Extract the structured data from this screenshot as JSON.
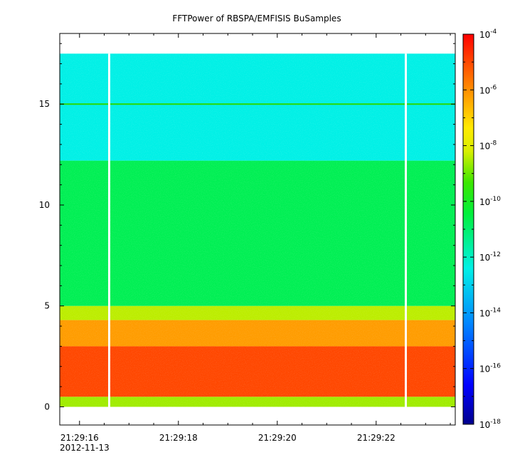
{
  "chart_data": {
    "type": "heatmap",
    "title": "FFTPower of RBSPA/EMFISIS  BuSamples",
    "xlabel": "",
    "ylabel": "",
    "x_ticks": [
      "21:29:16",
      "21:29:18",
      "21:29:20",
      "21:29:22"
    ],
    "x_tick_sub_label": "2012-11-13",
    "x_range_seconds": [
      15.6,
      23.6
    ],
    "y_ticks": [
      0,
      5,
      10,
      15
    ],
    "ylim": [
      -0.9,
      18.5
    ],
    "data_y_range": [
      0,
      17.5
    ],
    "colorbar": {
      "scale": "log",
      "range": [
        1e-18,
        0.0001
      ],
      "tick_labels": [
        {
          "base": "10",
          "exp": "-4"
        },
        {
          "base": "10",
          "exp": "-6"
        },
        {
          "base": "10",
          "exp": "-8"
        },
        {
          "base": "10",
          "exp": "-10"
        },
        {
          "base": "10",
          "exp": "-12"
        },
        {
          "base": "10",
          "exp": "-14"
        },
        {
          "base": "10",
          "exp": "-16"
        },
        {
          "base": "10",
          "exp": "-18"
        }
      ]
    },
    "gaps_seconds": [
      16.6,
      22.6
    ],
    "spectral_bands": [
      {
        "y_from": 0.0,
        "y_to": 0.5,
        "log_power": -8.6
      },
      {
        "y_from": 0.5,
        "y_to": 3.0,
        "log_power": -5.0
      },
      {
        "y_from": 3.0,
        "y_to": 4.3,
        "log_power": -6.2
      },
      {
        "y_from": 4.3,
        "y_to": 5.0,
        "log_power": -8.4
      },
      {
        "y_from": 5.0,
        "y_to": 12.2,
        "log_power": -10.7
      },
      {
        "y_from": 12.2,
        "y_to": 17.5,
        "log_power": -12.4
      }
    ],
    "line_feature_y": 15.0
  }
}
